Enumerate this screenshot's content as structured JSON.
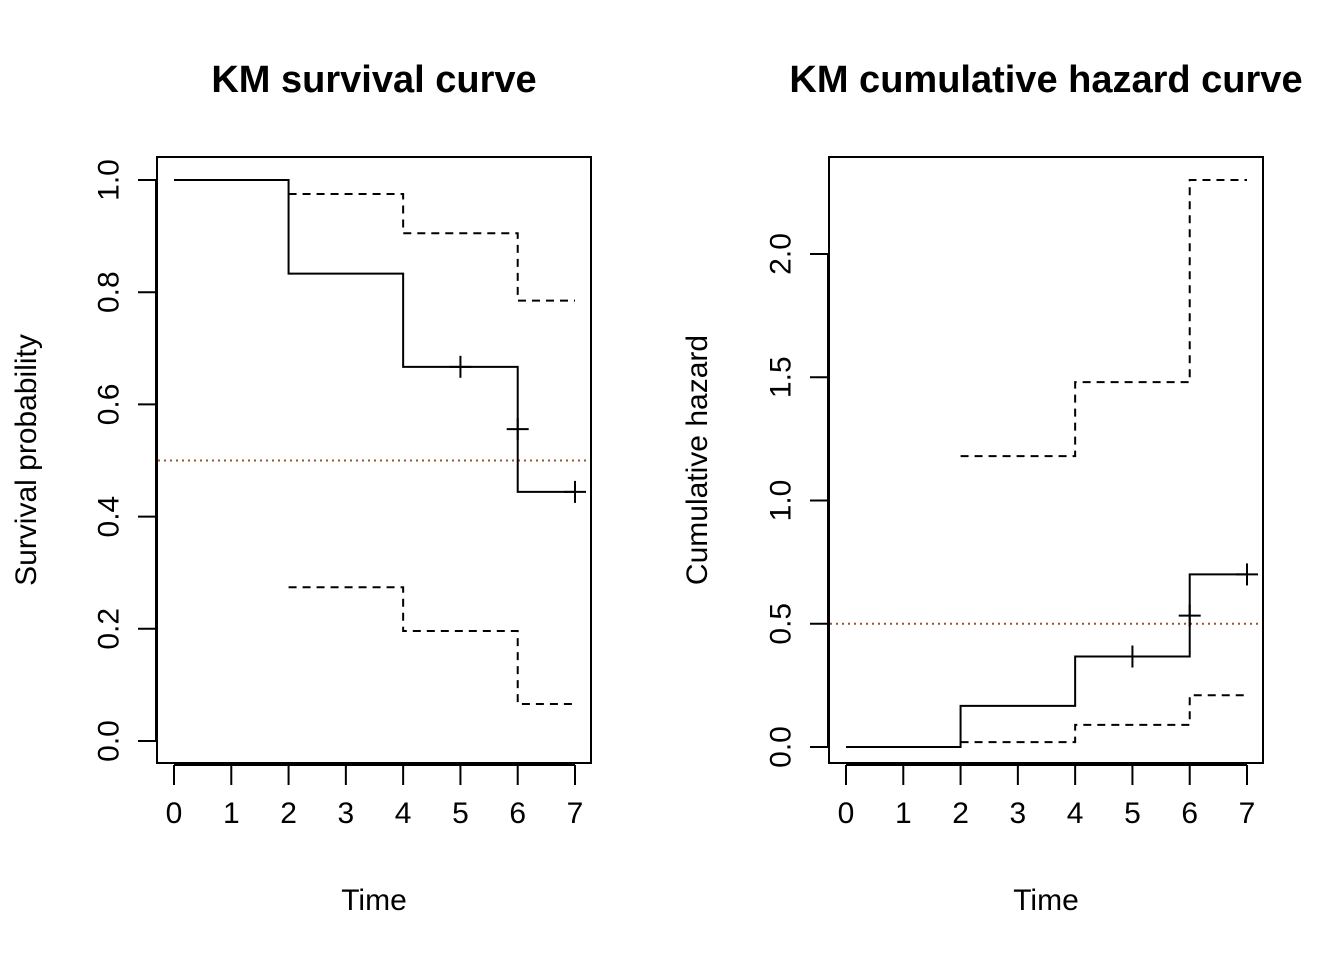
{
  "chart_data": [
    {
      "type": "line",
      "title": "KM survival curve",
      "xlabel": "Time",
      "ylabel": "Survival probability",
      "x_ticks": [
        0,
        1,
        2,
        3,
        4,
        5,
        6,
        7
      ],
      "y_ticks": [
        "0.0",
        "0.2",
        "0.4",
        "0.6",
        "0.8",
        "1.0"
      ],
      "xlim": [
        0,
        7
      ],
      "ylim": [
        0,
        1
      ],
      "grid": false,
      "step": true,
      "series": [
        {
          "role": "estimate",
          "linestyle": "solid",
          "x": [
            0,
            2,
            4,
            6,
            7
          ],
          "y": [
            1.0,
            0.833,
            0.667,
            0.444,
            0.444
          ]
        },
        {
          "role": "upper",
          "linestyle": "dashed",
          "x": [
            2,
            4,
            6,
            7
          ],
          "y": [
            0.975,
            0.905,
            0.785,
            0.785
          ]
        },
        {
          "role": "lower",
          "linestyle": "dashed",
          "x": [
            2,
            4,
            6,
            7
          ],
          "y": [
            0.274,
            0.196,
            0.066,
            0.066
          ]
        }
      ],
      "censored": [
        {
          "x": 5,
          "y": 0.667
        },
        {
          "x": 6,
          "y": 0.556
        },
        {
          "x": 7,
          "y": 0.444
        }
      ],
      "reference_line": {
        "y": 0.5,
        "color": "#a0522d",
        "linestyle": "dotted"
      }
    },
    {
      "type": "line",
      "title": "KM cumulative hazard curve",
      "xlabel": "Time",
      "ylabel": "Cumulative hazard",
      "x_ticks": [
        0,
        1,
        2,
        3,
        4,
        5,
        6,
        7
      ],
      "y_ticks": [
        "0.0",
        "0.5",
        "1.0",
        "1.5",
        "2.0"
      ],
      "xlim": [
        0,
        7
      ],
      "ylim": [
        0,
        2.3
      ],
      "grid": false,
      "step": true,
      "series": [
        {
          "role": "estimate",
          "linestyle": "solid",
          "x": [
            0,
            2,
            4,
            6,
            7
          ],
          "y": [
            0.0,
            0.167,
            0.367,
            0.7,
            0.7
          ]
        },
        {
          "role": "upper",
          "linestyle": "dashed",
          "x": [
            2,
            4,
            6,
            7
          ],
          "y": [
            1.18,
            1.48,
            2.3,
            2.3
          ]
        },
        {
          "role": "lower",
          "linestyle": "dashed",
          "x": [
            2,
            4,
            6,
            7
          ],
          "y": [
            0.02,
            0.09,
            0.21,
            0.21
          ]
        }
      ],
      "censored": [
        {
          "x": 5,
          "y": 0.367
        },
        {
          "x": 6,
          "y": 0.533
        },
        {
          "x": 7,
          "y": 0.7
        }
      ],
      "reference_line": {
        "y": 0.5,
        "color": "#a0522d",
        "linestyle": "dotted"
      }
    }
  ]
}
